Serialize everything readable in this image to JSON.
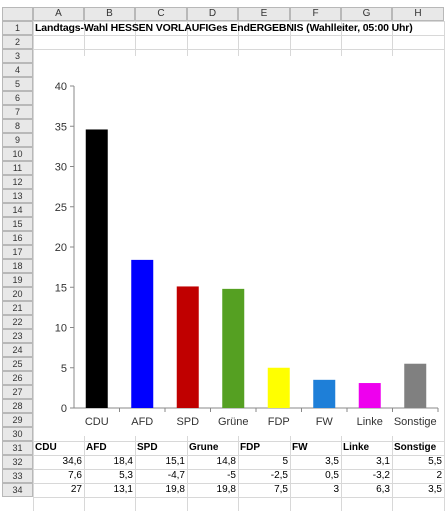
{
  "sheet": {
    "columns": [
      "A",
      "B",
      "C",
      "D",
      "E",
      "F",
      "G",
      "H"
    ],
    "rows": [
      "1",
      "2",
      "3",
      "4",
      "5",
      "6",
      "7",
      "8",
      "9",
      "10",
      "11",
      "12",
      "13",
      "14",
      "15",
      "16",
      "17",
      "18",
      "19",
      "20",
      "21",
      "22",
      "23",
      "24",
      "25",
      "26",
      "27",
      "28",
      "29",
      "30",
      "31",
      "32",
      "33",
      "34"
    ],
    "title": "Landtags-Wahl HESSEN VORLAUFIGes EndERGEBNIS (Wahlleiter, 05:00 Uhr)",
    "table": {
      "headers": [
        "CDU",
        "AFD",
        "SPD",
        "Grune",
        "FDP",
        "FW",
        "Linke",
        "Sonstige"
      ],
      "rows": [
        [
          "34,6",
          "18,4",
          "15,1",
          "14,8",
          "5",
          "3,5",
          "3,1",
          "5,5"
        ],
        [
          "7,6",
          "5,3",
          "-4,7",
          "-5",
          "-2,5",
          "0,5",
          "-3,2",
          "2"
        ],
        [
          "27",
          "13,1",
          "19,8",
          "19,8",
          "7,5",
          "3",
          "6,3",
          "3,5"
        ]
      ]
    }
  },
  "chart_data": {
    "type": "bar",
    "categories": [
      "CDU",
      "AFD",
      "SPD",
      "Grüne",
      "FDP",
      "FW",
      "Linke",
      "Sonstige"
    ],
    "values": [
      34.6,
      18.4,
      15.1,
      14.8,
      5,
      3.5,
      3.1,
      5.5
    ],
    "colors": [
      "#000000",
      "#0000ff",
      "#c00000",
      "#55a022",
      "#ffff00",
      "#1e7fd8",
      "#ee00ee",
      "#808080"
    ],
    "ylim": [
      0,
      40
    ],
    "yticks": [
      "0",
      "5",
      "10",
      "15",
      "20",
      "25",
      "30",
      "35",
      "40"
    ],
    "grid": false,
    "legend": "none"
  }
}
